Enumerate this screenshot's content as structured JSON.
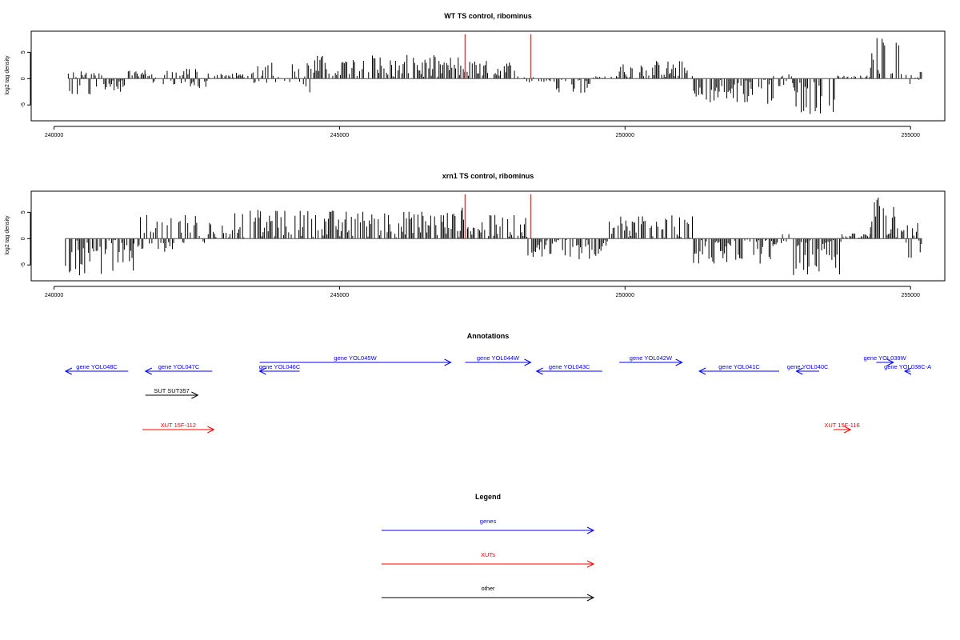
{
  "chart_data": [
    {
      "type": "bar",
      "title": "WT TS control, ribominus",
      "ylabel": "log2 tag density",
      "xlabel": "",
      "xlim": [
        239600,
        255600
      ],
      "ylim": [
        -8,
        9
      ],
      "xticks": [
        240000,
        245000,
        250000,
        255000
      ],
      "yticks": [
        -5,
        0,
        5
      ],
      "grid": false,
      "markers": [
        {
          "x": 247200,
          "color": "#ff3333"
        },
        {
          "x": 248350,
          "color": "#ff3333"
        }
      ],
      "segments": [
        {
          "start": 240250,
          "end": 240850,
          "min": -3.5,
          "max": 1.5
        },
        {
          "start": 240850,
          "end": 241300,
          "min": -2.5,
          "max": 0
        },
        {
          "start": 241300,
          "end": 241600,
          "min": 0,
          "max": 1.8
        },
        {
          "start": 241600,
          "end": 242300,
          "min": -1.5,
          "max": 1.5
        },
        {
          "start": 242300,
          "end": 242700,
          "min": -2.0,
          "max": 2.0
        },
        {
          "start": 242700,
          "end": 243500,
          "min": 0,
          "max": 1.2
        },
        {
          "start": 243500,
          "end": 244300,
          "min": -1.0,
          "max": 3.5
        },
        {
          "start": 244300,
          "end": 244500,
          "min": -3.0,
          "max": 4.5
        },
        {
          "start": 244500,
          "end": 247100,
          "min": 0,
          "max": 4.5
        },
        {
          "start": 247100,
          "end": 248100,
          "min": 0,
          "max": 3.5
        },
        {
          "start": 248100,
          "end": 248400,
          "min": -0.8,
          "max": 0.5
        },
        {
          "start": 248400,
          "end": 248800,
          "min": -0.7,
          "max": 0
        },
        {
          "start": 248800,
          "end": 249400,
          "min": -3.0,
          "max": 0
        },
        {
          "start": 249400,
          "end": 249900,
          "min": 0,
          "max": 0.5
        },
        {
          "start": 249900,
          "end": 251200,
          "min": 0,
          "max": 3.5
        },
        {
          "start": 251200,
          "end": 252600,
          "min": -5.0,
          "max": 0
        },
        {
          "start": 252600,
          "end": 252950,
          "min": -1.5,
          "max": 1.0
        },
        {
          "start": 252950,
          "end": 253700,
          "min": -7.0,
          "max": 0
        },
        {
          "start": 253700,
          "end": 254300,
          "min": 0,
          "max": 0.6
        },
        {
          "start": 254300,
          "end": 254900,
          "min": 0,
          "max": 8.5
        },
        {
          "start": 254900,
          "end": 255200,
          "min": -1.5,
          "max": 1.5
        }
      ]
    },
    {
      "type": "bar",
      "title": "xrn1 TS control, ribominus",
      "ylabel": "log2 tag density",
      "xlabel": "",
      "xlim": [
        239600,
        255600
      ],
      "ylim": [
        -8,
        9
      ],
      "xticks": [
        240000,
        245000,
        250000,
        255000
      ],
      "yticks": [
        -5,
        0,
        5
      ],
      "grid": false,
      "markers": [
        {
          "x": 247200,
          "color": "#ff3333"
        },
        {
          "x": 248350,
          "color": "#ff3333"
        }
      ],
      "segments": [
        {
          "start": 240200,
          "end": 241400,
          "min": -7.0,
          "max": 0
        },
        {
          "start": 241400,
          "end": 242700,
          "min": -2.5,
          "max": 4.5
        },
        {
          "start": 242700,
          "end": 243100,
          "min": 0,
          "max": 3.5
        },
        {
          "start": 243100,
          "end": 247150,
          "min": 0,
          "max": 5.5
        },
        {
          "start": 247150,
          "end": 247250,
          "min": 0,
          "max": 8.0
        },
        {
          "start": 247250,
          "end": 248300,
          "min": 0,
          "max": 4.5
        },
        {
          "start": 248300,
          "end": 249700,
          "min": -4.0,
          "max": 0
        },
        {
          "start": 249700,
          "end": 251200,
          "min": 0,
          "max": 4.5
        },
        {
          "start": 251200,
          "end": 252600,
          "min": -5.0,
          "max": 0
        },
        {
          "start": 252600,
          "end": 252950,
          "min": -1.5,
          "max": 1.0
        },
        {
          "start": 252950,
          "end": 253800,
          "min": -7.0,
          "max": 0
        },
        {
          "start": 253800,
          "end": 254300,
          "min": 0,
          "max": 1.0
        },
        {
          "start": 254300,
          "end": 254900,
          "min": 0,
          "max": 8.0
        },
        {
          "start": 254900,
          "end": 255200,
          "min": -4.0,
          "max": 3.5
        }
      ]
    }
  ],
  "annotations": {
    "title": "Annotations",
    "features": [
      {
        "label": "gene YOL048C",
        "start": 240200,
        "end": 241300,
        "strand": "-",
        "color": "#0000ff",
        "row": 0
      },
      {
        "label": "gene YOL047C",
        "start": 241600,
        "end": 242770,
        "strand": "-",
        "color": "#0000ff",
        "row": 0
      },
      {
        "label": "gene YOL046C",
        "start": 243600,
        "end": 244300,
        "strand": "-",
        "color": "#0000ff",
        "row": 0
      },
      {
        "label": "gene YOL045W",
        "start": 243600,
        "end": 246950,
        "strand": "+",
        "color": "#0000ff",
        "row": 1
      },
      {
        "label": "gene YOL044W",
        "start": 247200,
        "end": 248350,
        "strand": "+",
        "color": "#0000ff",
        "row": 1
      },
      {
        "label": "gene YOL043C",
        "start": 248450,
        "end": 249600,
        "strand": "-",
        "color": "#0000ff",
        "row": 0
      },
      {
        "label": "gene YOL042W",
        "start": 249900,
        "end": 251000,
        "strand": "+",
        "color": "#0000ff",
        "row": 1
      },
      {
        "label": "gene YOL041C",
        "start": 251300,
        "end": 252700,
        "strand": "-",
        "color": "#0000ff",
        "row": 0
      },
      {
        "label": "gene YOL040C",
        "start": 253000,
        "end": 253400,
        "strand": "-",
        "color": "#0000ff",
        "row": 0
      },
      {
        "label": "gene YOL039W",
        "start": 254400,
        "end": 254700,
        "strand": "+",
        "color": "#0000ff",
        "row": 1
      },
      {
        "label": "gene YOL038C-A",
        "start": 254900,
        "end": 255000,
        "strand": "-",
        "color": "#0000ff",
        "row": 0
      },
      {
        "label": "SUT SUT357",
        "start": 241600,
        "end": 242520,
        "strand": "+",
        "color": "#000000",
        "row": 2
      },
      {
        "label": "XUT 15F-112",
        "start": 241550,
        "end": 242800,
        "strand": "+",
        "color": "#ff0000",
        "row": 3
      },
      {
        "label": "XUT 15F-116",
        "start": 253650,
        "end": 253950,
        "strand": "+",
        "color": "#ff0000",
        "row": 3
      }
    ]
  },
  "legend": {
    "title": "Legend",
    "items": [
      {
        "label": "genes",
        "color": "#0000ff"
      },
      {
        "label": "XUTs",
        "color": "#ff0000"
      },
      {
        "label": "other",
        "color": "#000000"
      }
    ]
  }
}
